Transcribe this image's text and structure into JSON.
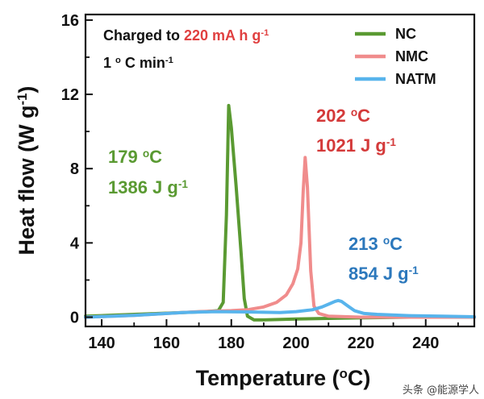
{
  "chart_data": {
    "type": "line",
    "title": "",
    "xlabel": "Temperature",
    "xlabel_unit_prefix": "(",
    "xlabel_unit_sup": "o",
    "xlabel_unit_suffix": "C)",
    "ylabel": "Heat flow",
    "ylabel_unit_prefix": "(W g",
    "ylabel_unit_sup": "-1",
    "ylabel_unit_suffix": ")",
    "xlim": [
      135,
      255
    ],
    "ylim": [
      -0.5,
      16.3
    ],
    "xticks": [
      140,
      160,
      180,
      200,
      220,
      240
    ],
    "xtick_labels": [
      "140",
      "160",
      "180",
      "200",
      "220",
      "240"
    ],
    "yticks": [
      0,
      4,
      8,
      12,
      16
    ],
    "ytick_labels": [
      "0",
      "4",
      "8",
      "12",
      "16"
    ],
    "grid": false,
    "legend_position": "top-right",
    "conditions": {
      "line1_prefix": "Charged to ",
      "line1_value": "220 mA h g",
      "line1_sup": "-1",
      "line2_text": "1 ",
      "line2_sup": "o",
      "line2_unit": "C min",
      "line2_sup2": "-1"
    },
    "series": [
      {
        "name": "NC",
        "color": "#5a9a32",
        "x": [
          135,
          150,
          165,
          172,
          176,
          177.5,
          178.5,
          179.2,
          180,
          181.5,
          183,
          184,
          185,
          187,
          190,
          200,
          215,
          235,
          255
        ],
        "y": [
          0.05,
          0.15,
          0.25,
          0.3,
          0.35,
          0.8,
          5.5,
          11.4,
          10.2,
          7.0,
          3.5,
          1.0,
          0.05,
          -0.15,
          -0.15,
          -0.1,
          -0.05,
          0.0,
          0.0
        ]
      },
      {
        "name": "NMC",
        "color": "#f08c8c",
        "x": [
          135,
          150,
          160,
          170,
          180,
          185,
          190,
          194,
          197,
          199,
          200.5,
          201.5,
          202.2,
          202.8,
          203.5,
          204.5,
          205.5,
          207,
          210,
          220,
          240,
          255
        ],
        "y": [
          0.0,
          0.1,
          0.2,
          0.3,
          0.35,
          0.4,
          0.55,
          0.8,
          1.2,
          1.8,
          2.6,
          4.0,
          6.8,
          8.6,
          7.0,
          2.5,
          0.6,
          0.2,
          0.05,
          0.0,
          0.0,
          0.0
        ]
      },
      {
        "name": "NATM",
        "color": "#58b4ec",
        "x": [
          135,
          150,
          165,
          175,
          185,
          195,
          200,
          205,
          208,
          210,
          212,
          213,
          214,
          216,
          218,
          221,
          225,
          235,
          245,
          255
        ],
        "y": [
          0.0,
          0.1,
          0.25,
          0.3,
          0.28,
          0.25,
          0.3,
          0.4,
          0.55,
          0.7,
          0.85,
          0.9,
          0.85,
          0.6,
          0.35,
          0.2,
          0.15,
          0.08,
          0.05,
          0.02
        ]
      }
    ],
    "annotations": [
      {
        "series": "NC",
        "color": "#5a9a32",
        "temp": "179 ",
        "temp_sup": "o",
        "temp_unit": "C",
        "energy": "1386 J g",
        "energy_sup": "-1"
      },
      {
        "series": "NMC",
        "color": "#d43a3a",
        "temp": "202 ",
        "temp_sup": "o",
        "temp_unit": "C",
        "energy": "1021 J g",
        "energy_sup": "-1"
      },
      {
        "series": "NATM",
        "color": "#2c78bc",
        "temp": "213 ",
        "temp_sup": "o",
        "temp_unit": "C",
        "energy": "854 J g",
        "energy_sup": "-1"
      }
    ],
    "highlight_color": "#e04040"
  },
  "watermark": "头条 @能源学人"
}
